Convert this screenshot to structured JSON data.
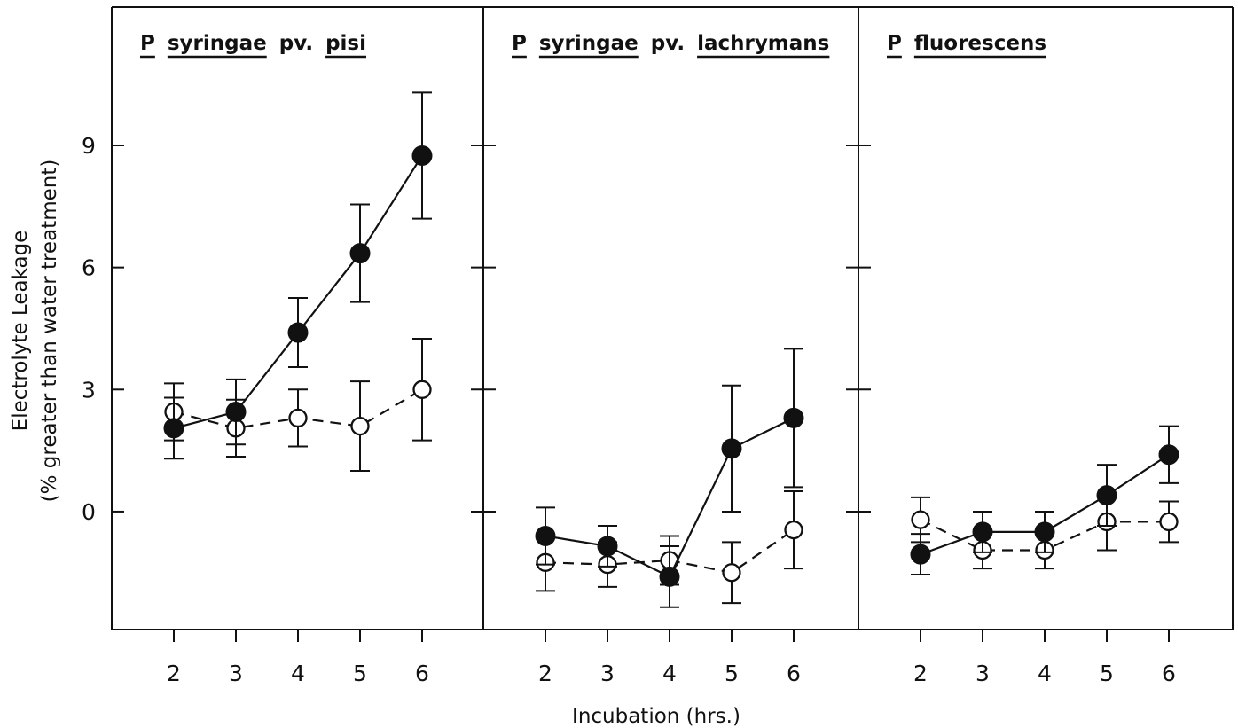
{
  "chart_data": {
    "type": "line",
    "xlabel": "Incubation (hrs.)",
    "ylabel_line1": "Electrolyte Leakage",
    "ylabel_line2": "(% greater than water treatment)",
    "x": [
      2,
      3,
      4,
      5,
      6
    ],
    "yticks": [
      "0",
      "3",
      "6",
      "9"
    ],
    "ylim": [
      -2.9,
      12.4
    ],
    "panels": [
      {
        "title_words": [
          "P",
          "syringae",
          "pv.",
          "pisi"
        ],
        "underlined": [
          true,
          true,
          false,
          true
        ],
        "series": [
          {
            "marker": "filled",
            "line": "solid",
            "values": [
              2.05,
              2.45,
              4.4,
              6.35,
              8.75
            ],
            "err": [
              0.75,
              0.8,
              0.85,
              1.2,
              1.55
            ]
          },
          {
            "marker": "open",
            "line": "dashed",
            "values": [
              2.45,
              2.05,
              2.3,
              2.1,
              3.0
            ],
            "err": [
              0.7,
              0.7,
              0.7,
              1.1,
              1.25
            ]
          }
        ]
      },
      {
        "title_words": [
          "P",
          "syringae",
          "pv.",
          "lachrymans"
        ],
        "underlined": [
          true,
          true,
          false,
          true
        ],
        "series": [
          {
            "marker": "filled",
            "line": "solid",
            "values": [
              -0.6,
              -0.85,
              -1.6,
              1.55,
              2.3
            ],
            "err": [
              0.7,
              0.5,
              0.75,
              1.55,
              1.7
            ]
          },
          {
            "marker": "open",
            "line": "dashed",
            "values": [
              -1.25,
              -1.3,
              -1.2,
              -1.5,
              -0.45
            ],
            "err": [
              0.7,
              0.55,
              0.6,
              0.75,
              0.95
            ]
          }
        ]
      },
      {
        "title_words": [
          "P",
          "fluorescens"
        ],
        "underlined": [
          true,
          true
        ],
        "series": [
          {
            "marker": "filled",
            "line": "solid",
            "values": [
              -1.05,
              -0.5,
              -0.5,
              0.4,
              1.4
            ],
            "err": [
              0.5,
              0.5,
              0.5,
              0.75,
              0.7
            ]
          },
          {
            "marker": "open",
            "line": "dashed",
            "values": [
              -0.2,
              -0.95,
              -0.95,
              -0.25,
              -0.25
            ],
            "err": [
              0.55,
              0.45,
              0.45,
              0.7,
              0.5
            ]
          }
        ]
      }
    ]
  }
}
